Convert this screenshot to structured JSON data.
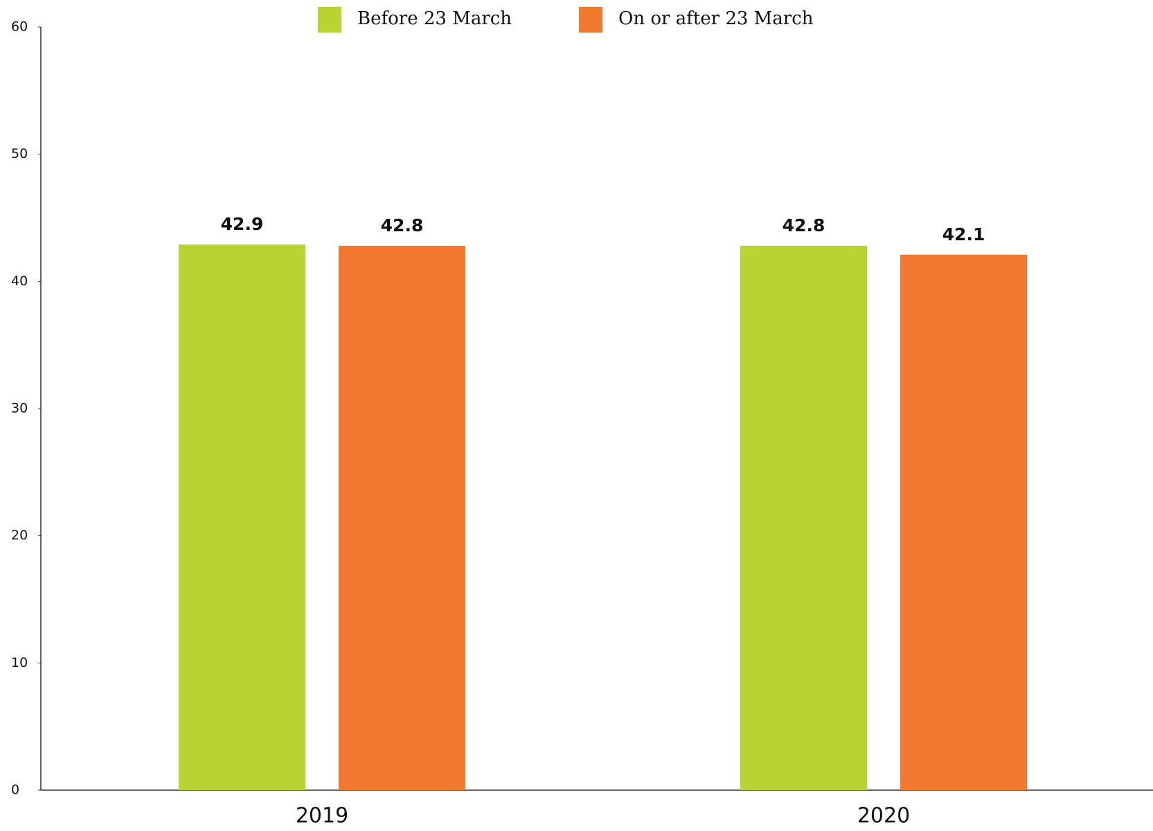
{
  "chart_data": {
    "type": "bar",
    "categories": [
      "2019",
      "2020"
    ],
    "series": [
      {
        "name": "Before 23 March",
        "color": "#b8d433",
        "values": [
          42.9,
          42.8
        ]
      },
      {
        "name": "On or after 23 March",
        "color": "#f37830",
        "values": [
          42.8,
          42.1
        ]
      }
    ],
    "ylim": [
      0,
      60
    ],
    "yticks": [
      0,
      10,
      20,
      30,
      40,
      50,
      60
    ],
    "grid": false,
    "legend": "top",
    "data_labels": true
  }
}
